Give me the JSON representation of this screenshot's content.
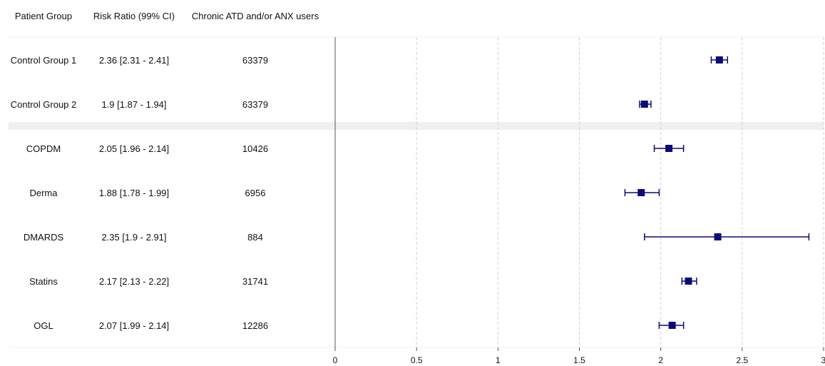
{
  "chart_data": {
    "type": "forest",
    "columns": [
      "Patient Group",
      "Risk Ratio (99% CI)",
      "Chronic ATD and/or ANX users"
    ],
    "rows": [
      {
        "group": "Control Group 1",
        "rr_label": "2.36 [2.31 - 2.41]",
        "n": "63379",
        "rr": 2.36,
        "lo": 2.31,
        "hi": 2.41
      },
      {
        "group": "Control Group 2",
        "rr_label": "1.9 [1.87 - 1.94]",
        "n": "63379",
        "rr": 1.9,
        "lo": 1.87,
        "hi": 1.94
      },
      {
        "group": "COPDM",
        "rr_label": "2.05 [1.96 - 2.14]",
        "n": "10426",
        "rr": 2.05,
        "lo": 1.96,
        "hi": 2.14
      },
      {
        "group": "Derma",
        "rr_label": "1.88 [1.78 - 1.99]",
        "n": "6956",
        "rr": 1.88,
        "lo": 1.78,
        "hi": 1.99
      },
      {
        "group": "DMARDS",
        "rr_label": "2.35 [1.9 - 2.91]",
        "n": "884",
        "rr": 2.35,
        "lo": 1.9,
        "hi": 2.91
      },
      {
        "group": "Statins",
        "rr_label": "2.17 [2.13 - 2.22]",
        "n": "31741",
        "rr": 2.17,
        "lo": 2.13,
        "hi": 2.22
      },
      {
        "group": "OGL",
        "rr_label": "2.07 [1.99 - 2.14]",
        "n": "12286",
        "rr": 2.07,
        "lo": 1.99,
        "hi": 2.14
      }
    ],
    "separator_after_row": 1,
    "xlim": [
      0,
      3
    ],
    "xticks": [
      "0",
      "0.5",
      "1",
      "1.5",
      "2",
      "2.5",
      "3"
    ],
    "grid": true,
    "colors": {
      "marker": "#0a0a78",
      "grid": "#d0d0d0",
      "separator": "#efefef",
      "axis": "#555555"
    }
  }
}
